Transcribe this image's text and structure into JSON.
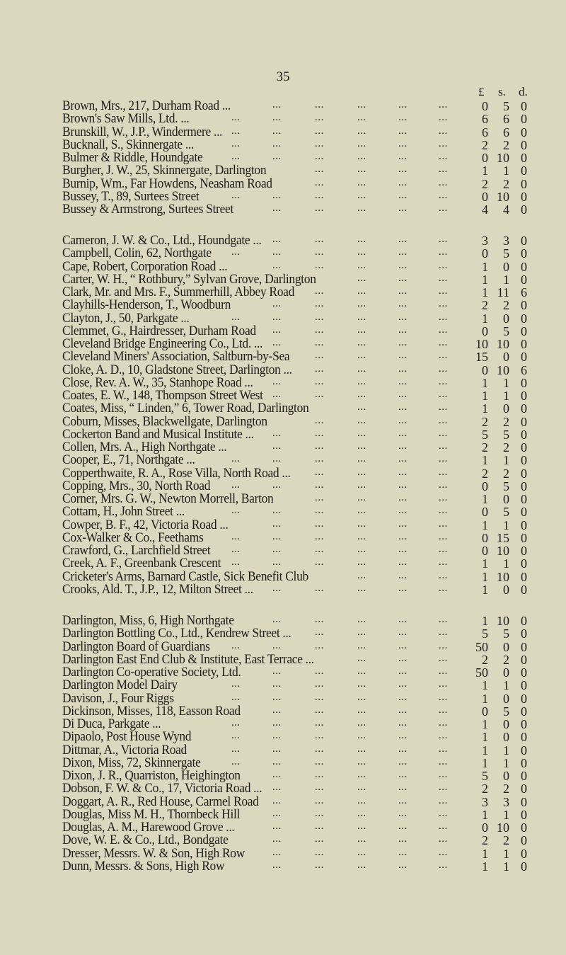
{
  "page_number": "35",
  "columns": {
    "pounds": "£",
    "shillings": "s.",
    "pence": "d."
  },
  "leader": "...",
  "sections": [
    {
      "entries": [
        {
          "name": "Brown, Mrs., 217, Durham Road ...",
          "l": "0",
          "s": "5",
          "d": "0"
        },
        {
          "name": "Brown's Saw Mills, Ltd. ...",
          "l": "6",
          "s": "6",
          "d": "0"
        },
        {
          "name": "Brunskill, W., J.P., Windermere ...",
          "l": "6",
          "s": "6",
          "d": "0"
        },
        {
          "name": "Bucknall, S., Skinnergate ...",
          "l": "2",
          "s": "2",
          "d": "0"
        },
        {
          "name": "Bulmer & Riddle, Houndgate",
          "l": "0",
          "s": "10",
          "d": "0"
        },
        {
          "name": "Burgher, J. W., 25, Skinnergate, Darlington",
          "l": "1",
          "s": "1",
          "d": "0"
        },
        {
          "name": "Burnip, Wm., Far Howdens, Neasham Road",
          "l": "2",
          "s": "2",
          "d": "0"
        },
        {
          "name": "Bussey, T., 89, Surtees Street",
          "l": "0",
          "s": "10",
          "d": "0"
        },
        {
          "name": "Bussey & Armstrong, Surtees Street",
          "l": "4",
          "s": "4",
          "d": "0"
        }
      ]
    },
    {
      "entries": [
        {
          "name": "Cameron, J. W. & Co., Ltd., Houndgate ...",
          "l": "3",
          "s": "3",
          "d": "0"
        },
        {
          "name": "Campbell, Colin, 62, Northgate",
          "l": "0",
          "s": "5",
          "d": "0"
        },
        {
          "name": "Cape, Robert, Corporation Road ...",
          "l": "1",
          "s": "0",
          "d": "0"
        },
        {
          "name": "Carter, W. H., “ Rothbury,” Sylvan Grove, Darlington",
          "l": "1",
          "s": "1",
          "d": "0"
        },
        {
          "name": "Clark, Mr. and Mrs. F., Summerhill, Abbey Road",
          "l": "1",
          "s": "11",
          "d": "6"
        },
        {
          "name": "Clayhills-Henderson, T., Woodburn",
          "l": "2",
          "s": "2",
          "d": "0"
        },
        {
          "name": "Clayton, J., 50, Parkgate ...",
          "l": "1",
          "s": "0",
          "d": "0"
        },
        {
          "name": "Clemmet, G., Hairdresser, Durham Road",
          "l": "0",
          "s": "5",
          "d": "0"
        },
        {
          "name": "Cleveland Bridge Engineering Co., Ltd. ...",
          "l": "10",
          "s": "10",
          "d": "0"
        },
        {
          "name": "Cleveland Miners' Association, Saltburn-by-Sea",
          "l": "15",
          "s": "0",
          "d": "0"
        },
        {
          "name": "Cloke, A. D., 10, Gladstone Street, Darlington ...",
          "l": "0",
          "s": "10",
          "d": "6"
        },
        {
          "name": "Close, Rev. A. W., 35, Stanhope Road ...",
          "l": "1",
          "s": "1",
          "d": "0"
        },
        {
          "name": "Coates, E. W., 148, Thompson Street West",
          "l": "1",
          "s": "1",
          "d": "0"
        },
        {
          "name": "Coates, Miss, “ Linden,” 6, Tower Road, Darlington",
          "l": "1",
          "s": "0",
          "d": "0"
        },
        {
          "name": "Coburn, Misses, Blackwellgate, Darlington",
          "l": "2",
          "s": "2",
          "d": "0"
        },
        {
          "name": "Cockerton Band and Musical Institute ...",
          "l": "5",
          "s": "5",
          "d": "0"
        },
        {
          "name": "Collen, Mrs. A., High Northgate ...",
          "l": "2",
          "s": "2",
          "d": "0"
        },
        {
          "name": "Cooper, E., 71, Northgate ...",
          "l": "1",
          "s": "1",
          "d": "0"
        },
        {
          "name": "Copperthwaite, R. A., Rose Villa, North Road ...",
          "l": "2",
          "s": "2",
          "d": "0"
        },
        {
          "name": "Copping, Mrs., 30, North Road",
          "l": "0",
          "s": "5",
          "d": "0"
        },
        {
          "name": "Corner, Mrs. G. W., Newton Morrell, Barton",
          "l": "1",
          "s": "0",
          "d": "0"
        },
        {
          "name": "Cottam, H., John Street ...",
          "l": "0",
          "s": "5",
          "d": "0"
        },
        {
          "name": "Cowper, B. F., 42, Victoria Road ...",
          "l": "1",
          "s": "1",
          "d": "0"
        },
        {
          "name": "Cox-Walker & Co., Feethams",
          "l": "0",
          "s": "15",
          "d": "0"
        },
        {
          "name": "Crawford, G., Larchfield Street",
          "l": "0",
          "s": "10",
          "d": "0"
        },
        {
          "name": "Creek, A. F., Greenbank Crescent",
          "l": "1",
          "s": "1",
          "d": "0"
        },
        {
          "name": "Cricketer's Arms, Barnard Castle, Sick Benefit Club",
          "l": "1",
          "s": "10",
          "d": "0"
        },
        {
          "name": "Crooks, Ald. T., J.P., 12, Milton Street ...",
          "l": "1",
          "s": "0",
          "d": "0"
        }
      ]
    },
    {
      "entries": [
        {
          "name": "Darlington, Miss, 6, High Northgate",
          "l": "1",
          "s": "10",
          "d": "0"
        },
        {
          "name": "Darlington Bottling Co., Ltd., Kendrew Street ...",
          "l": "5",
          "s": "5",
          "d": "0"
        },
        {
          "name": "Darlington Board of Guardians",
          "l": "50",
          "s": "0",
          "d": "0"
        },
        {
          "name": "Darlington East End Club & Institute, East Terrace ...",
          "l": "2",
          "s": "2",
          "d": "0"
        },
        {
          "name": "Darlington Co-operative Society, Ltd.",
          "l": "50",
          "s": "0",
          "d": "0"
        },
        {
          "name": "Darlington Model Dairy",
          "l": "1",
          "s": "1",
          "d": "0"
        },
        {
          "name": "Davison, J., Four Riggs",
          "l": "1",
          "s": "0",
          "d": "0"
        },
        {
          "name": "Dickinson, Misses, 118, Easson Road",
          "l": "0",
          "s": "5",
          "d": "0"
        },
        {
          "name": "Di Duca, Parkgate ...",
          "l": "1",
          "s": "0",
          "d": "0"
        },
        {
          "name": "Dipaolo, Post House Wynd",
          "l": "1",
          "s": "0",
          "d": "0"
        },
        {
          "name": "Dittmar, A., Victoria Road",
          "l": "1",
          "s": "1",
          "d": "0"
        },
        {
          "name": "Dixon, Miss, 72, Skinnergate",
          "l": "1",
          "s": "1",
          "d": "0"
        },
        {
          "name": "Dixon, J. R., Quarriston, Heighington",
          "l": "5",
          "s": "0",
          "d": "0"
        },
        {
          "name": "Dobson, F. W. & Co., 17, Victoria Road ...",
          "l": "2",
          "s": "2",
          "d": "0"
        },
        {
          "name": "Doggart, A. R., Red House, Carmel Road",
          "l": "3",
          "s": "3",
          "d": "0"
        },
        {
          "name": "Douglas, Miss M. H., Thornbeck Hill",
          "l": "1",
          "s": "1",
          "d": "0"
        },
        {
          "name": "Douglas, A. M., Harewood Grove ...",
          "l": "0",
          "s": "10",
          "d": "0"
        },
        {
          "name": "Dove, W. E. & Co., Ltd., Bondgate",
          "l": "2",
          "s": "2",
          "d": "0"
        },
        {
          "name": "Dresser, Messrs. W. & Son, High Row",
          "l": "1",
          "s": "1",
          "d": "0"
        },
        {
          "name": "Dunn, Messrs. & Sons, High Row",
          "l": "1",
          "s": "1",
          "d": "0"
        }
      ]
    }
  ]
}
